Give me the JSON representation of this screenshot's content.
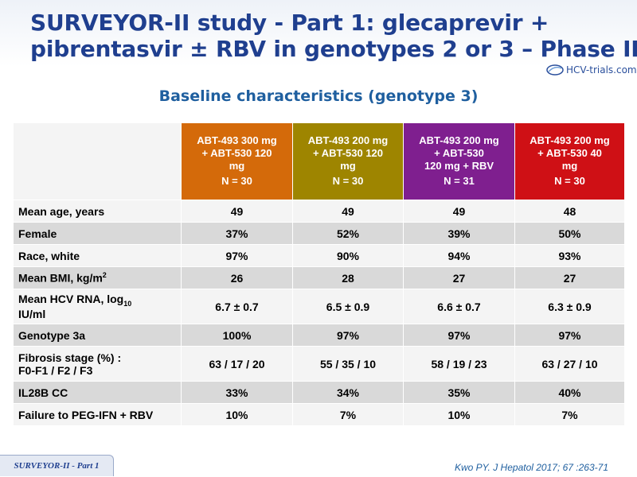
{
  "slide": {
    "title_line1": "SURVEYOR-II study - Part 1: glecaprevir +",
    "title_line2": "pibrentasvir ± RBV in genotypes 2 or 3 – Phase II",
    "logo_text": "HCV-trials.com",
    "subtitle": "Baseline characteristics (genotype 3)",
    "footer_tab": "SURVEYOR-II - Part 1",
    "citation": "Kwo PY. J Hepatol 2017; 67 :263-71"
  },
  "table": {
    "columns": [
      {
        "line1": "ABT-493 300 mg",
        "line2": "+ ABT-530 120",
        "line3": "mg",
        "n": "N = 30",
        "color": "#d46a0a"
      },
      {
        "line1": "ABT-493 200 mg",
        "line2": "+ ABT-530 120",
        "line3": "mg",
        "n": "N = 30",
        "color": "#9e8500"
      },
      {
        "line1": "ABT-493 200 mg",
        "line2": "+ ABT-530",
        "line3": "120 mg + RBV",
        "n": "N = 31",
        "color": "#7f1f8f"
      },
      {
        "line1": "ABT-493 200 mg",
        "line2": "+ ABT-530 40",
        "line3": "mg",
        "n": "N = 30",
        "color": "#cf1015"
      }
    ],
    "rows": [
      {
        "label": "Mean age, years",
        "values": [
          "49",
          "49",
          "49",
          "48"
        ]
      },
      {
        "label": "Female",
        "values": [
          "37%",
          "52%",
          "39%",
          "50%"
        ]
      },
      {
        "label": "Race, white",
        "values": [
          "97%",
          "90%",
          "94%",
          "93%"
        ]
      },
      {
        "label_main": "Mean BMI, kg/m",
        "label_sup": "2",
        "values": [
          "26",
          "28",
          "27",
          "27"
        ]
      },
      {
        "label_line1_main": "Mean HCV RNA, log",
        "label_line1_sub": "10",
        "label_line2": "IU/ml",
        "values": [
          "6.7 ± 0.7",
          "6.5 ± 0.9",
          "6.6 ± 0.7",
          "6.3 ± 0.9"
        ]
      },
      {
        "label": "Genotype 3a",
        "values": [
          "100%",
          "97%",
          "97%",
          "97%"
        ]
      },
      {
        "label_line1": "Fibrosis stage (%) :",
        "label_line2": "F0-F1 / F2 / F3",
        "values": [
          "63 / 17 / 20",
          "55 / 35 / 10",
          "58 / 19 / 23",
          "63 / 27 / 10"
        ]
      },
      {
        "label": "IL28B CC",
        "values": [
          "33%",
          "34%",
          "35%",
          "40%"
        ]
      },
      {
        "label": "Failure to PEG-IFN + RBV",
        "values": [
          "10%",
          "7%",
          "10%",
          "7%"
        ]
      }
    ]
  }
}
